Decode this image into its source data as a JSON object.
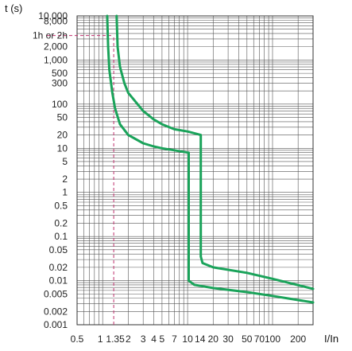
{
  "chart_data": {
    "type": "line",
    "title": "",
    "xlabel": "I/In",
    "ylabel": "t (s)",
    "x_scale": "log",
    "y_scale": "log",
    "xlim": [
      0.5,
      300
    ],
    "ylim": [
      0.001,
      10000
    ],
    "grid": true,
    "x_tick_labels": [
      {
        "value": 0.5,
        "label": "0.5"
      },
      {
        "value": 1,
        "label": "1"
      },
      {
        "value": 1.35,
        "label": "1.35"
      },
      {
        "value": 2,
        "label": "2"
      },
      {
        "value": 3,
        "label": "3"
      },
      {
        "value": 4,
        "label": "4"
      },
      {
        "value": 5,
        "label": "5"
      },
      {
        "value": 7,
        "label": "7"
      },
      {
        "value": 10,
        "label": "10"
      },
      {
        "value": 14,
        "label": "14"
      },
      {
        "value": 20,
        "label": "20"
      },
      {
        "value": 30,
        "label": "30"
      },
      {
        "value": 50,
        "label": "50"
      },
      {
        "value": 70,
        "label": "70"
      },
      {
        "value": 100,
        "label": "100"
      },
      {
        "value": 200,
        "label": "200"
      }
    ],
    "y_tick_labels": [
      {
        "value": 10000,
        "label": "10,000"
      },
      {
        "value": 8000,
        "label": "8,000"
      },
      {
        "value": 3600,
        "label": "1h or 2h"
      },
      {
        "value": 2000,
        "label": "2,000"
      },
      {
        "value": 1000,
        "label": "1,000"
      },
      {
        "value": 500,
        "label": "500"
      },
      {
        "value": 300,
        "label": "300"
      },
      {
        "value": 100,
        "label": "100"
      },
      {
        "value": 50,
        "label": "50"
      },
      {
        "value": 20,
        "label": "20"
      },
      {
        "value": 10,
        "label": "10"
      },
      {
        "value": 5,
        "label": "5"
      },
      {
        "value": 2,
        "label": "2"
      },
      {
        "value": 1,
        "label": "1"
      },
      {
        "value": 0.5,
        "label": "0.5"
      },
      {
        "value": 0.2,
        "label": "0.2"
      },
      {
        "value": 0.1,
        "label": "0.1"
      },
      {
        "value": 0.05,
        "label": "0.05"
      },
      {
        "value": 0.02,
        "label": "0.02"
      },
      {
        "value": 0.01,
        "label": "0.01"
      },
      {
        "value": 0.005,
        "label": "0.005"
      },
      {
        "value": 0.002,
        "label": "0.002"
      },
      {
        "value": 0.001,
        "label": "0.001"
      }
    ],
    "series": [
      {
        "points": [
          [
            1.13,
            10000
          ],
          [
            1.16,
            2000
          ],
          [
            1.2,
            600
          ],
          [
            1.3,
            180
          ],
          [
            1.4,
            80
          ],
          [
            1.6,
            35
          ],
          [
            2,
            20
          ],
          [
            3,
            13
          ],
          [
            4,
            11
          ],
          [
            5,
            10
          ],
          [
            7,
            9
          ],
          [
            10,
            8
          ],
          [
            10.3,
            8
          ],
          [
            10.3,
            0.01
          ],
          [
            12,
            0.008
          ],
          [
            20,
            0.0068
          ],
          [
            50,
            0.0055
          ],
          [
            100,
            0.0045
          ],
          [
            300,
            0.0032
          ]
        ]
      },
      {
        "points": [
          [
            1.46,
            10000
          ],
          [
            1.5,
            2000
          ],
          [
            1.6,
            700
          ],
          [
            1.8,
            300
          ],
          [
            2,
            180
          ],
          [
            3,
            70
          ],
          [
            4,
            45
          ],
          [
            5,
            35
          ],
          [
            7,
            27
          ],
          [
            10,
            24
          ],
          [
            14.3,
            20
          ],
          [
            14.3,
            0.035
          ],
          [
            15,
            0.025
          ],
          [
            20,
            0.02
          ],
          [
            50,
            0.015
          ],
          [
            100,
            0.011
          ],
          [
            300,
            0.0065
          ]
        ]
      }
    ],
    "reference_lines": [
      {
        "x": 1.35,
        "y_from": 0.001,
        "y_to": 3600
      },
      {
        "y": 3600,
        "x_from": 0.5,
        "x_to": 1.35
      }
    ],
    "colors": {
      "series": "#1aa35a",
      "grid": "#555555",
      "reference": "#c0306e",
      "background": "#ffffff"
    }
  }
}
